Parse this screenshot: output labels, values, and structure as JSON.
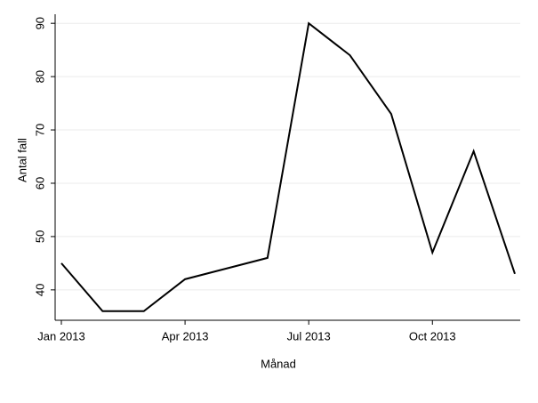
{
  "chart_data": {
    "type": "line",
    "x_label": "Månad",
    "y_label": "Antal fall",
    "categories": [
      "Jan 2013",
      null,
      null,
      "Apr 2013",
      null,
      null,
      "Jul 2013",
      null,
      null,
      "Oct 2013",
      null,
      null
    ],
    "values": [
      45,
      36,
      36,
      42,
      44,
      46,
      90,
      84,
      73,
      47,
      66,
      43
    ],
    "color": "#000000",
    "ylim": [
      34.3,
      91.7
    ],
    "yticks": [
      40,
      50,
      60,
      70,
      80,
      90
    ],
    "grid": true
  }
}
